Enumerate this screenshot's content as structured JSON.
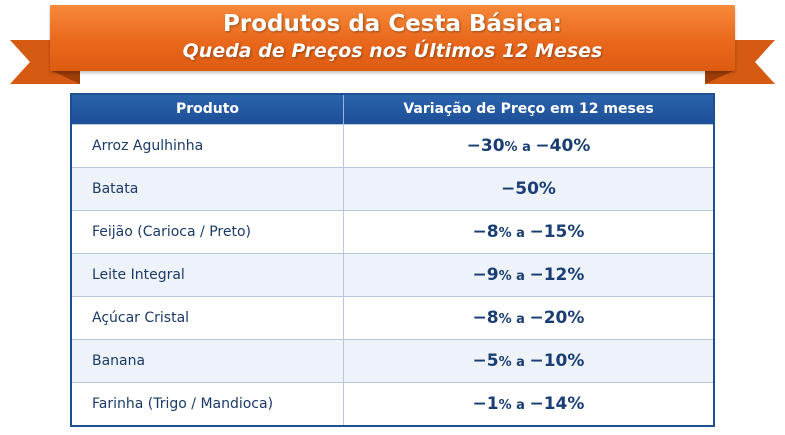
{
  "banner": {
    "title": "Produtos da Cesta Básica:",
    "subtitle": "Queda de Preços nos Últimos 12 Meses"
  },
  "table": {
    "headers": [
      "Produto",
      "Variação de Preço em 12 meses"
    ],
    "rows": [
      {
        "produto": "Arroz Agulhinha",
        "de": "-30",
        "ate": "-40"
      },
      {
        "produto": "Batata",
        "de": "-50",
        "ate": null
      },
      {
        "produto": "Feijão (Carioca / Preto)",
        "de": "-8",
        "ate": "-15"
      },
      {
        "produto": "Leite Integral",
        "de": "-9",
        "ate": "-12"
      },
      {
        "produto": "Açúcar Cristal",
        "de": "-8",
        "ate": "-20"
      },
      {
        "produto": "Banana",
        "de": "-5",
        "ate": "-10"
      },
      {
        "produto": "Farinha (Trigo / Mandioca)",
        "de": "-1",
        "ate": "-14"
      }
    ],
    "range_word": "a",
    "unit": "%"
  },
  "chart_data": {
    "type": "table",
    "title": "Produtos da Cesta Básica:",
    "subtitle": "Queda de Preços nos Últimos 12 Meses",
    "columns": [
      "Produto",
      "Variação de Preço em 12 meses"
    ],
    "categories": [
      "Arroz Agulhinha",
      "Batata",
      "Feijão (Carioca / Preto)",
      "Leite Integral",
      "Açúcar Cristal",
      "Banana",
      "Farinha (Trigo / Mandioca)"
    ],
    "series": [
      {
        "values_min": [
          -30,
          -50,
          -8,
          -9,
          -8,
          -5,
          -1
        ]
      },
      {
        "values_max": [
          -40,
          -50,
          -15,
          -12,
          -20,
          -10,
          -14
        ]
      }
    ],
    "unit": "%"
  },
  "colors": {
    "banner": "#e9681c",
    "header": "#1e4f93",
    "value_text": "#1a3e74"
  }
}
